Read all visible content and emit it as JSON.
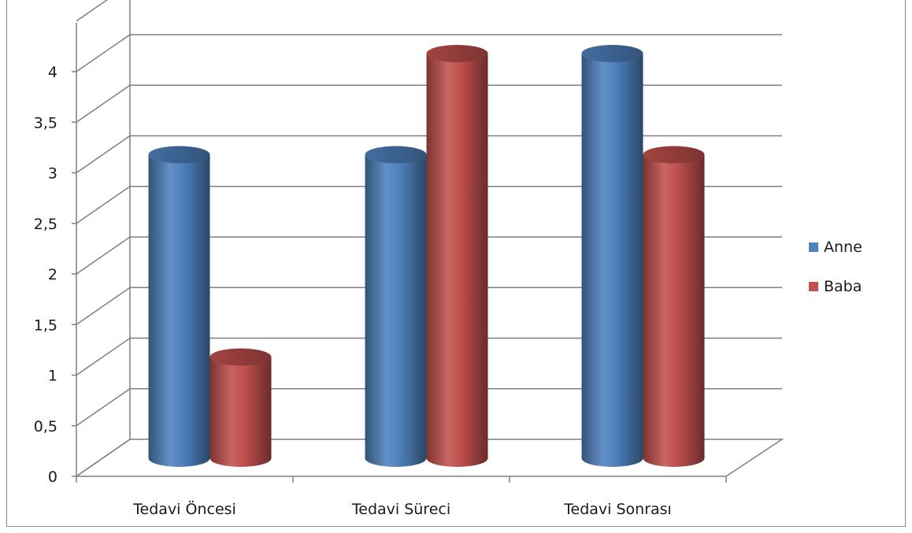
{
  "chart_data": {
    "type": "bar",
    "style": "3d-cylinder",
    "categories": [
      "Tedavi Öncesi",
      "Tedavi Süreci",
      "Tedavi Sonrası"
    ],
    "series": [
      {
        "name": "Anne",
        "values": [
          3,
          3,
          4
        ],
        "color": "#4f81bd"
      },
      {
        "name": "Baba",
        "values": [
          1,
          4,
          3
        ],
        "color": "#c0504d"
      }
    ],
    "yticks": [
      "0",
      "0,5",
      "1",
      "1,5",
      "2",
      "2,5",
      "3",
      "3,5",
      "4"
    ],
    "ylim": [
      0,
      4.5
    ],
    "grid": true,
    "legend_position": "right"
  }
}
